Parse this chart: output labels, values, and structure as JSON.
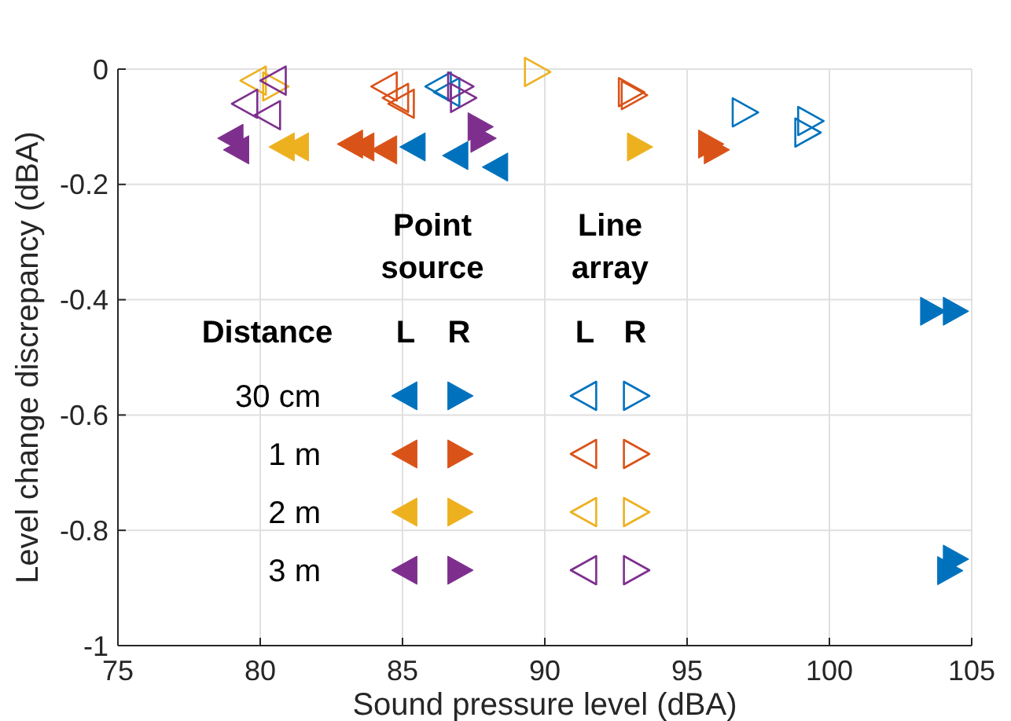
{
  "chart_data": {
    "type": "scatter",
    "xlabel": "Sound pressure level (dBA)",
    "ylabel": "Level change discrepancy (dBA)",
    "xlim": [
      75,
      105
    ],
    "xticks": [
      75,
      80,
      85,
      90,
      95,
      100,
      105
    ],
    "ylim": [
      -1,
      0
    ],
    "yticks": [
      0,
      -0.2,
      -0.4,
      -0.6,
      -0.8,
      -1
    ],
    "grid": true,
    "marker": "triangle",
    "legend": "bottom left",
    "legend_title": "Distance",
    "annotations": [
      "Point source",
      "Line array",
      "L",
      "R",
      "L",
      "R"
    ],
    "series": [
      {
        "name": "30 cm",
        "color": "#0072bd",
        "x": [
          85.4,
          86.9,
          88.3
        ],
        "values": [
          -0.135,
          -0.15,
          -0.17
        ]
      },
      {
        "color": "#0072bd",
        "x": [
          103.6,
          104.4,
          104.4,
          104.2
        ],
        "values": [
          -0.42,
          -0.42,
          -0.85,
          -0.87
        ]
      },
      {
        "color": "#0072bd",
        "x": [
          86.3,
          86.6
        ],
        "values": [
          -0.03,
          -0.04
        ]
      },
      {
        "color": "#0072bd",
        "x": [
          97,
          99.3,
          99.2
        ],
        "values": [
          -0.075,
          -0.09,
          -0.11
        ]
      },
      {
        "name": "1 m",
        "color": "#d95319",
        "x": [
          83.2,
          83.6,
          84.4
        ],
        "values": [
          -0.13,
          -0.135,
          -0.14
        ]
      },
      {
        "color": "#d95319",
        "x": [
          95.8,
          96
        ],
        "values": [
          -0.13,
          -0.14
        ]
      },
      {
        "color": "#d95319",
        "x": [
          84.4,
          84.8,
          85
        ],
        "values": [
          -0.03,
          -0.05,
          -0.06
        ]
      },
      {
        "color": "#d95319",
        "x": [
          93,
          93.1
        ],
        "values": [
          -0.04,
          -0.045
        ]
      },
      {
        "name": "2 m",
        "color": "#edb120",
        "x": [
          80.8,
          81.3
        ],
        "values": [
          -0.135,
          -0.135
        ]
      },
      {
        "color": "#edb120",
        "x": [
          93.3
        ],
        "values": [
          -0.135
        ]
      },
      {
        "color": "#edb120",
        "x": [
          79.8
        ],
        "values": [
          -0.02
        ]
      },
      {
        "color": "#edb120",
        "x": [
          80.5,
          89.7
        ],
        "values": [
          -0.03,
          -0.005
        ]
      },
      {
        "name": "3 m",
        "color": "#7e2f8e",
        "x": [
          79,
          79.2
        ],
        "values": [
          -0.12,
          -0.14
        ]
      },
      {
        "color": "#7e2f8e",
        "x": [
          87.7,
          87.8
        ],
        "values": [
          -0.1,
          -0.12
        ]
      },
      {
        "color": "#7e2f8e",
        "x": [
          80.5,
          79.5,
          80.3
        ],
        "values": [
          -0.02,
          -0.06,
          -0.08
        ]
      },
      {
        "color": "#7e2f8e",
        "x": [
          87,
          87.1
        ],
        "values": [
          -0.03,
          -0.05
        ]
      }
    ]
  }
}
